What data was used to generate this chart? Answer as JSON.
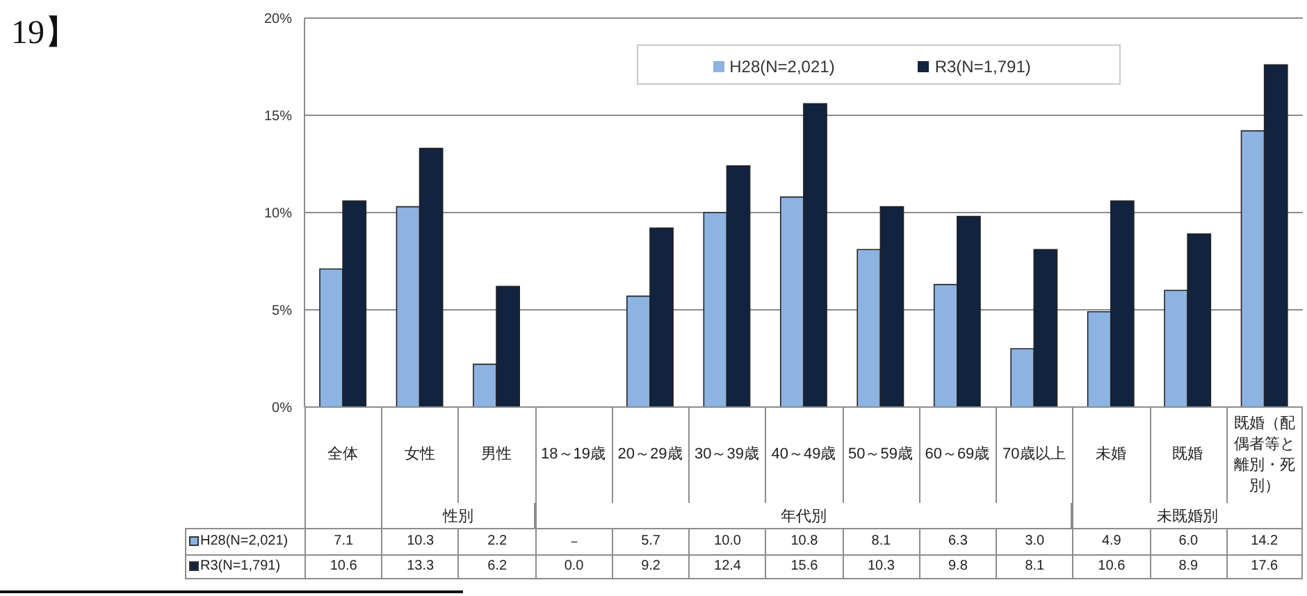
{
  "chart_data": {
    "type": "bar",
    "title": "19】",
    "categories": [
      "全体",
      "女性",
      "男性",
      "18～19歳",
      "20～29歳",
      "30～39歳",
      "40～49歳",
      "50～59歳",
      "60～69歳",
      "70歳以上",
      "未婚",
      "既婚",
      "既婚（配偶者等と離別・死別）"
    ],
    "series": [
      {
        "name": "H28(N=2,021)",
        "color": "#8db3e2",
        "values": [
          7.1,
          10.3,
          2.2,
          null,
          5.7,
          10.0,
          10.8,
          8.1,
          6.3,
          3.0,
          4.9,
          6.0,
          14.2
        ],
        "value_labels": [
          "7.1",
          "10.3",
          "2.2",
          "－",
          "5.7",
          "10.0",
          "10.8",
          "8.1",
          "6.3",
          "3.0",
          "4.9",
          "6.0",
          "14.2"
        ]
      },
      {
        "name": "R3(N=1,791)",
        "color": "#12233f",
        "values": [
          10.6,
          13.3,
          6.2,
          0.0,
          9.2,
          12.4,
          15.6,
          10.3,
          9.8,
          8.1,
          10.6,
          8.9,
          17.6
        ],
        "value_labels": [
          "10.6",
          "13.3",
          "6.2",
          "0.0",
          "9.2",
          "12.4",
          "15.6",
          "10.3",
          "9.8",
          "8.1",
          "10.6",
          "8.9",
          "17.6"
        ]
      }
    ],
    "ylim": [
      0,
      20
    ],
    "yticks": [
      {
        "value": 0,
        "label": "0%"
      },
      {
        "value": 5,
        "label": "5%"
      },
      {
        "value": 10,
        "label": "10%"
      },
      {
        "value": 15,
        "label": "15%"
      },
      {
        "value": 20,
        "label": "20%"
      }
    ],
    "grid": "y",
    "legend": "top",
    "annotations": [
      "性別",
      "年代別",
      "未既婚別"
    ]
  }
}
